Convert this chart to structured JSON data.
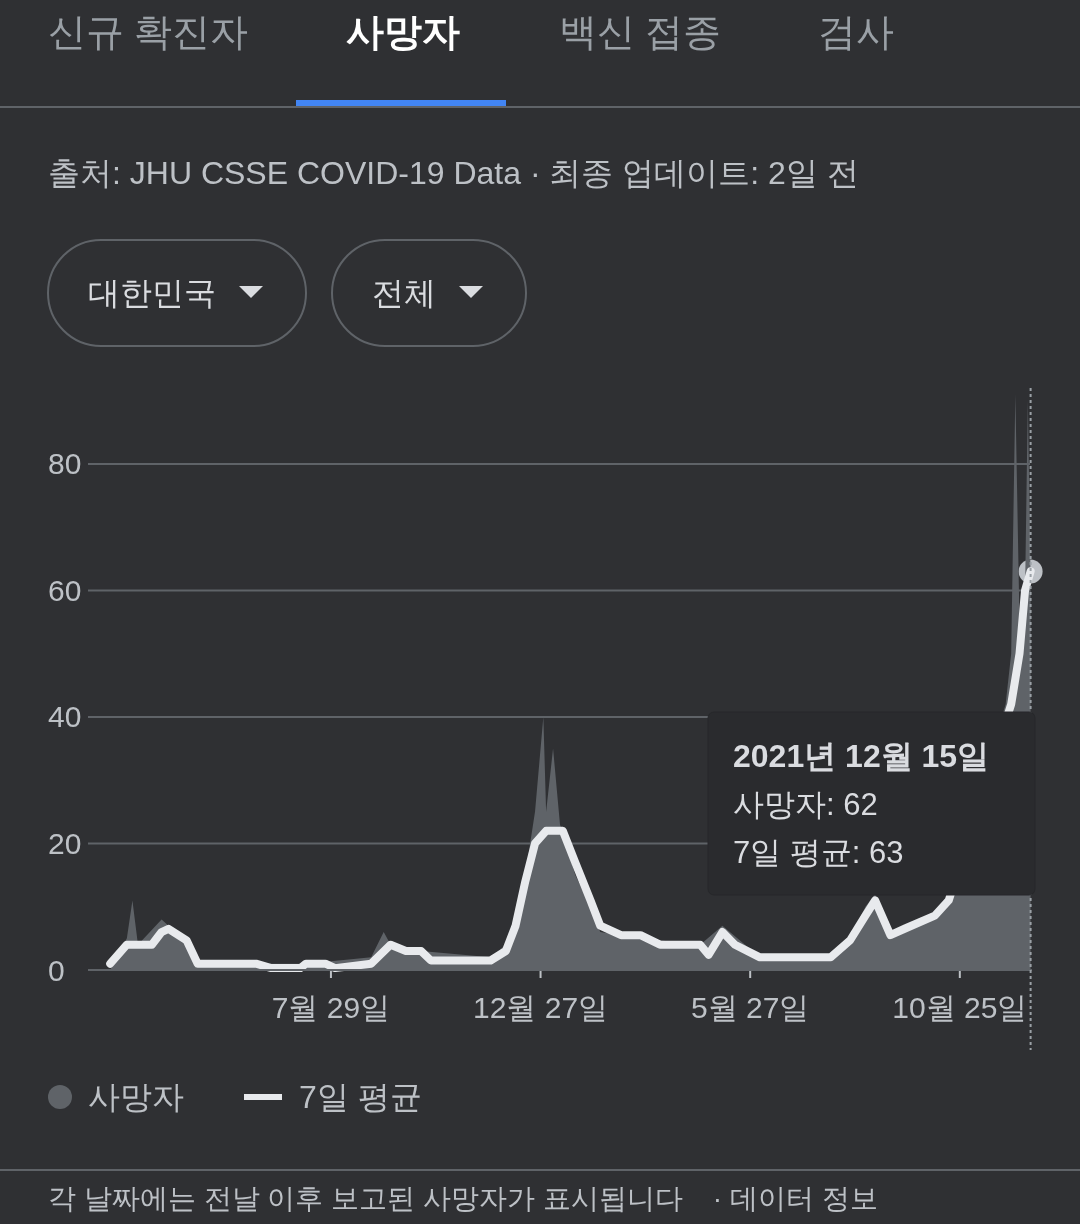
{
  "chart_data": {
    "type": "area",
    "title": "사망자",
    "subtitle": "출처: JHU CSSE COVID-19 Data · 최종 업데이트: 2일 전",
    "annotations": [
      "신규 확진자",
      "백신 접종",
      "검사",
      "대한민국",
      "전체",
      "각 날짜에는 전날 이후 보고된 사망자가 표시됩니다",
      "· 데이터 정보",
      "2021년 12월 15일\n사망자: 62\n7일 평균: 63"
    ],
    "series": [
      {
        "name": "사망자",
        "color": "#5f6368",
        "x": [
          "2020-02-21",
          "2020-03-04",
          "2020-03-08",
          "2020-03-12",
          "2020-03-29",
          "2020-04-03",
          "2020-04-10",
          "2020-04-24",
          "2020-06-05",
          "2020-07-11",
          "2020-08-27",
          "2020-09-05",
          "2020-09-10",
          "2020-10-02",
          "2020-11-21",
          "2020-12-02",
          "2020-12-09",
          "2020-12-16",
          "2020-12-23",
          "2020-12-29",
          "2020-12-31",
          "2021-01-05",
          "2021-01-10",
          "2021-01-21",
          "2021-02-01",
          "2021-02-08",
          "2021-03-09",
          "2021-04-21",
          "2021-05-07",
          "2021-06-03",
          "2021-07-24",
          "2021-08-07",
          "2021-08-18",
          "2021-08-25",
          "2021-09-05",
          "2021-09-16",
          "2021-10-07",
          "2021-10-17",
          "2021-11-27",
          "2021-12-01",
          "2021-12-04",
          "2021-12-07",
          "2021-12-11",
          "2021-12-13",
          "2021-12-15"
        ],
        "values": [
          0,
          5,
          11,
          4,
          8,
          7,
          6,
          1,
          1,
          1,
          2,
          6,
          4,
          3,
          2,
          4,
          9,
          15,
          25,
          40,
          25,
          35,
          23,
          15,
          10,
          6,
          5,
          4,
          7,
          2,
          2,
          5,
          10,
          12,
          5,
          7,
          9,
          12,
          42,
          50,
          91,
          55,
          60,
          90,
          62
        ]
      },
      {
        "name": "7일 평균",
        "type": "line",
        "color": "#e8eaed",
        "x": [
          "2020-02-21",
          "2020-03-04",
          "2020-03-22",
          "2020-03-29",
          "2020-04-03",
          "2020-04-16",
          "2020-04-24",
          "2020-06-05",
          "2020-06-16",
          "2020-07-07",
          "2020-07-11",
          "2020-07-25",
          "2020-08-01",
          "2020-08-27",
          "2020-09-10",
          "2020-09-21",
          "2020-10-02",
          "2020-10-09",
          "2020-11-21",
          "2020-12-02",
          "2020-12-09",
          "2020-12-16",
          "2020-12-23",
          "2020-12-31",
          "2021-01-12",
          "2021-01-21",
          "2021-02-01",
          "2021-02-08",
          "2021-02-23",
          "2021-03-09",
          "2021-03-23",
          "2021-04-21",
          "2021-04-27",
          "2021-05-07",
          "2021-05-16",
          "2021-06-03",
          "2021-07-24",
          "2021-08-07",
          "2021-08-18",
          "2021-08-25",
          "2021-09-05",
          "2021-09-16",
          "2021-10-07",
          "2021-10-17",
          "2021-12-01",
          "2021-12-07",
          "2021-12-11",
          "2021-12-15"
        ],
        "values": [
          1,
          4,
          4,
          6,
          6.5,
          4.7,
          1,
          1,
          0.3,
          0.3,
          1,
          1,
          0.3,
          1,
          4,
          3,
          3,
          1.5,
          1.5,
          3,
          7,
          14,
          20,
          22,
          22,
          17,
          11,
          7,
          5.5,
          5.5,
          4,
          4,
          2.4,
          6,
          4,
          2,
          2,
          4.7,
          8.6,
          11,
          5.5,
          6.6,
          8.6,
          11,
          42,
          50,
          60,
          63
        ]
      }
    ],
    "xlim": [
      "2020-02-05",
      "2021-12-16"
    ],
    "xticks": [
      {
        "value": "2020-07-29",
        "label": "7월 29일"
      },
      {
        "value": "2020-12-27",
        "label": "12월 27일"
      },
      {
        "value": "2021-05-27",
        "label": "5월 27일"
      },
      {
        "value": "2021-10-25",
        "label": "10월 25일"
      }
    ],
    "ylim": [
      0,
      92
    ],
    "yticks": [
      0,
      20,
      40,
      60,
      80
    ],
    "grid": "y",
    "legend": "bottom",
    "ref_lines": [
      {
        "axis": "x",
        "value": "2021-12-15",
        "color": "#9aa0a6",
        "line_style": "dotted"
      }
    ]
  }
}
